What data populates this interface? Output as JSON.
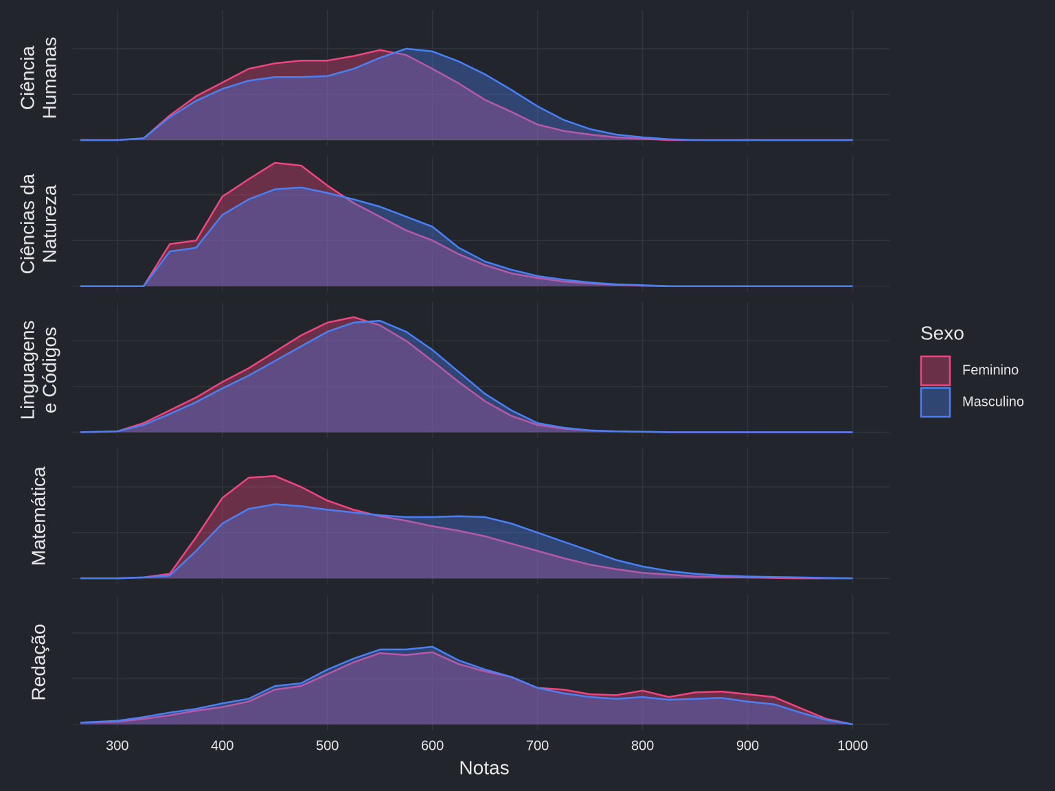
{
  "chart_data": {
    "type": "density",
    "xlabel": "Notas",
    "legend_title": "Sexo",
    "legend": "right",
    "grid": true,
    "xlim": [
      257,
      1035
    ],
    "xticks": [
      300,
      400,
      500,
      600,
      700,
      800,
      900,
      1000
    ],
    "ylim": [
      -0.06,
      1.42
    ],
    "yticks": [
      0,
      0.5,
      1
    ],
    "series": [
      {
        "name": "Feminino",
        "color": "#f0457f"
      },
      {
        "name": "Masculino",
        "color": "#4a80f5"
      }
    ],
    "x": [
      265,
      300,
      325,
      350,
      375,
      400,
      425,
      450,
      475,
      500,
      525,
      550,
      575,
      600,
      625,
      650,
      675,
      700,
      725,
      750,
      775,
      800,
      825,
      850,
      875,
      900,
      925,
      950,
      975,
      1000
    ],
    "facets": [
      {
        "label": [
          "Ciência",
          "Humanas"
        ],
        "values": [
          [
            0,
            0,
            0.02,
            0.27,
            0.48,
            0.63,
            0.78,
            0.84,
            0.87,
            0.87,
            0.92,
            0.985,
            0.93,
            0.78,
            0.62,
            0.44,
            0.31,
            0.17,
            0.1,
            0.06,
            0.03,
            0.015,
            0,
            0,
            0,
            0,
            0,
            0,
            0,
            0
          ],
          [
            0,
            0,
            0.02,
            0.25,
            0.43,
            0.56,
            0.65,
            0.69,
            0.69,
            0.7,
            0.78,
            0.9,
            1.0,
            0.97,
            0.86,
            0.72,
            0.55,
            0.37,
            0.22,
            0.12,
            0.06,
            0.03,
            0.01,
            0,
            0,
            0,
            0,
            0,
            0,
            0
          ]
        ]
      },
      {
        "label": [
          "Ciências da",
          "Natureza"
        ],
        "values": [
          [
            0,
            0,
            0,
            0.46,
            0.5,
            0.98,
            1.17,
            1.35,
            1.32,
            1.1,
            0.91,
            0.76,
            0.61,
            0.5,
            0.35,
            0.23,
            0.14,
            0.09,
            0.05,
            0.03,
            0.015,
            0.005,
            0,
            0,
            0,
            0,
            0,
            0,
            0,
            0
          ],
          [
            0,
            0,
            0,
            0.38,
            0.42,
            0.78,
            0.95,
            1.06,
            1.08,
            1.02,
            0.95,
            0.87,
            0.76,
            0.65,
            0.42,
            0.27,
            0.18,
            0.11,
            0.07,
            0.04,
            0.02,
            0.01,
            0,
            0,
            0,
            0,
            0,
            0,
            0,
            0
          ]
        ]
      },
      {
        "label": [
          "Linguagens",
          "e Códigos"
        ],
        "values": [
          [
            0,
            0.01,
            0.1,
            0.24,
            0.38,
            0.55,
            0.7,
            0.88,
            1.06,
            1.2,
            1.26,
            1.17,
            1.0,
            0.78,
            0.55,
            0.34,
            0.18,
            0.08,
            0.04,
            0.02,
            0.01,
            0.005,
            0,
            0,
            0,
            0,
            0,
            0,
            0,
            0
          ],
          [
            0,
            0.01,
            0.08,
            0.2,
            0.33,
            0.48,
            0.62,
            0.78,
            0.94,
            1.1,
            1.2,
            1.22,
            1.1,
            0.9,
            0.66,
            0.42,
            0.24,
            0.1,
            0.05,
            0.02,
            0.01,
            0.005,
            0,
            0,
            0,
            0,
            0,
            0,
            0,
            0
          ]
        ]
      },
      {
        "label": [
          "Matemática"
        ],
        "values": [
          [
            0,
            0,
            0.01,
            0.05,
            0.45,
            0.88,
            1.1,
            1.12,
            1.0,
            0.85,
            0.75,
            0.68,
            0.63,
            0.57,
            0.52,
            0.46,
            0.38,
            0.3,
            0.22,
            0.15,
            0.1,
            0.06,
            0.04,
            0.02,
            0.015,
            0.01,
            0.005,
            0,
            0,
            0
          ],
          [
            0,
            0,
            0.01,
            0.03,
            0.3,
            0.6,
            0.76,
            0.81,
            0.79,
            0.75,
            0.72,
            0.69,
            0.67,
            0.67,
            0.68,
            0.67,
            0.6,
            0.5,
            0.4,
            0.3,
            0.2,
            0.13,
            0.08,
            0.05,
            0.03,
            0.02,
            0.015,
            0.01,
            0.005,
            0
          ]
        ]
      },
      {
        "label": [
          "Redação"
        ],
        "values": [
          [
            0.02,
            0.03,
            0.06,
            0.1,
            0.15,
            0.19,
            0.25,
            0.38,
            0.42,
            0.55,
            0.68,
            0.78,
            0.76,
            0.79,
            0.66,
            0.58,
            0.52,
            0.4,
            0.38,
            0.33,
            0.32,
            0.37,
            0.3,
            0.35,
            0.36,
            0.33,
            0.3,
            0.18,
            0.06,
            0
          ],
          [
            0.02,
            0.04,
            0.08,
            0.13,
            0.17,
            0.23,
            0.28,
            0.42,
            0.45,
            0.6,
            0.72,
            0.82,
            0.82,
            0.85,
            0.7,
            0.6,
            0.52,
            0.4,
            0.34,
            0.3,
            0.28,
            0.3,
            0.27,
            0.28,
            0.29,
            0.25,
            0.22,
            0.13,
            0.05,
            0
          ]
        ]
      }
    ]
  }
}
